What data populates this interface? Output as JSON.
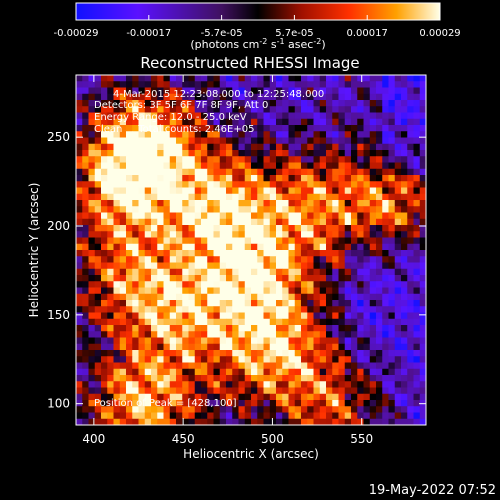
{
  "chart_data": {
    "type": "heatmap",
    "title": "Reconstructed RHESSI Image",
    "xlabel": "Heliocentric X (arcsec)",
    "ylabel": "Heliocentric Y (arcsec)",
    "xlim": [
      390,
      586
    ],
    "ylim": [
      88,
      285
    ],
    "x_ticks": [
      400,
      450,
      500,
      550
    ],
    "y_ticks": [
      100,
      150,
      200,
      250
    ],
    "colorbar": {
      "ticks": [
        "-0.00029",
        "-0.00017",
        "-5.7e-05",
        "5.7e-05",
        "0.00017",
        "0.00029"
      ],
      "label_parts": [
        "(photons cm",
        "-2",
        " s",
        "-1",
        " asec",
        "-2",
        ")"
      ],
      "range": [
        -0.00029,
        0.00029
      ]
    },
    "info_lines": [
      "4-Mar-2015 12:23:08.000 to 12:25:48.000",
      "Detectors: 3F 5F 6F 7F 8F 9F, Att 0",
      "Energy Range: 12.0 - 25.0 keV",
      "Clean     Total counts: 2.46E+05"
    ],
    "peak_label": "Position of Peak = [428,100]",
    "peak_position": [
      428,
      100
    ],
    "bright_sources": [
      {
        "x": 430,
        "y": 248,
        "amp": 1.0
      },
      {
        "x": 415,
        "y": 222,
        "amp": 0.85
      },
      {
        "x": 470,
        "y": 210,
        "amp": 1.0
      },
      {
        "x": 492,
        "y": 170,
        "amp": 0.9
      },
      {
        "x": 520,
        "y": 212,
        "amp": 0.7
      },
      {
        "x": 565,
        "y": 212,
        "amp": 0.75
      },
      {
        "x": 428,
        "y": 100,
        "amp": 1.0
      },
      {
        "x": 500,
        "y": 128,
        "amp": 0.9
      },
      {
        "x": 540,
        "y": 98,
        "amp": 0.7
      },
      {
        "x": 450,
        "y": 150,
        "amp": 0.7
      },
      {
        "x": 420,
        "y": 170,
        "amp": 0.7
      }
    ]
  },
  "timestamp": "19-May-2022 07:52"
}
